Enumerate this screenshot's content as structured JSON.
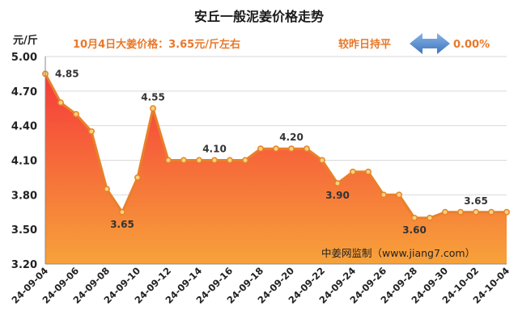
{
  "chart_data": {
    "type": "area",
    "title": "安丘一般泥姜价格走势",
    "ylabel": "元/斤",
    "subtitle": "10月4日大姜价格：3.65元/斤左右",
    "compare_label": "较昨日持平",
    "compare_value": "0.00%",
    "watermark": "中姜网监制（www.jiang7.com）",
    "ylim": [
      3.2,
      5.0
    ],
    "yticks": [
      "5.00",
      "4.70",
      "4.40",
      "4.10",
      "3.80",
      "3.50",
      "3.20"
    ],
    "x": [
      "24-09-04",
      "24-09-05",
      "24-09-06",
      "24-09-07",
      "24-09-08",
      "24-09-09",
      "24-09-10",
      "24-09-11",
      "24-09-12",
      "24-09-13",
      "24-09-14",
      "24-09-15",
      "24-09-16",
      "24-09-17",
      "24-09-18",
      "24-09-19",
      "24-09-20",
      "24-09-21",
      "24-09-22",
      "24-09-23",
      "24-09-24",
      "24-09-25",
      "24-09-26",
      "24-09-27",
      "24-09-28",
      "24-09-29",
      "24-09-30",
      "24-10-01",
      "24-10-02",
      "24-10-03",
      "24-10-04"
    ],
    "xtick_labels": [
      "24-09-04",
      "24-09-06",
      "24-09-08",
      "24-09-10",
      "24-09-12",
      "24-09-14",
      "24-09-16",
      "24-09-18",
      "24-09-20",
      "24-09-22",
      "24-09-24",
      "24-09-26",
      "24-09-28",
      "24-09-30",
      "24-10-02",
      "24-10-04"
    ],
    "series": [
      {
        "values": [
          4.85,
          4.6,
          4.5,
          4.35,
          3.85,
          3.65,
          3.95,
          4.55,
          4.1,
          4.1,
          4.1,
          4.1,
          4.1,
          4.1,
          4.2,
          4.2,
          4.2,
          4.2,
          4.1,
          3.9,
          4.0,
          4.0,
          3.8,
          3.8,
          3.6,
          3.6,
          3.65,
          3.65,
          3.65,
          3.65,
          3.65
        ]
      }
    ],
    "data_labels": [
      {
        "index": 0,
        "text": "4.85"
      },
      {
        "index": 5,
        "text": "3.65"
      },
      {
        "index": 7,
        "text": "4.55"
      },
      {
        "index": 11,
        "text": "4.10"
      },
      {
        "index": 16,
        "text": "4.20"
      },
      {
        "index": 19,
        "text": "3.90"
      },
      {
        "index": 24,
        "text": "3.60"
      },
      {
        "index": 28,
        "text": "3.65"
      }
    ],
    "colors": {
      "line": "#e8802a",
      "fill_top": "#f53a3a",
      "fill_bottom": "#f7a23a",
      "subtitle": "#e8782a",
      "arrow": "#5a8fd0",
      "grid": "#d9d9d9"
    },
    "grid": true
  }
}
